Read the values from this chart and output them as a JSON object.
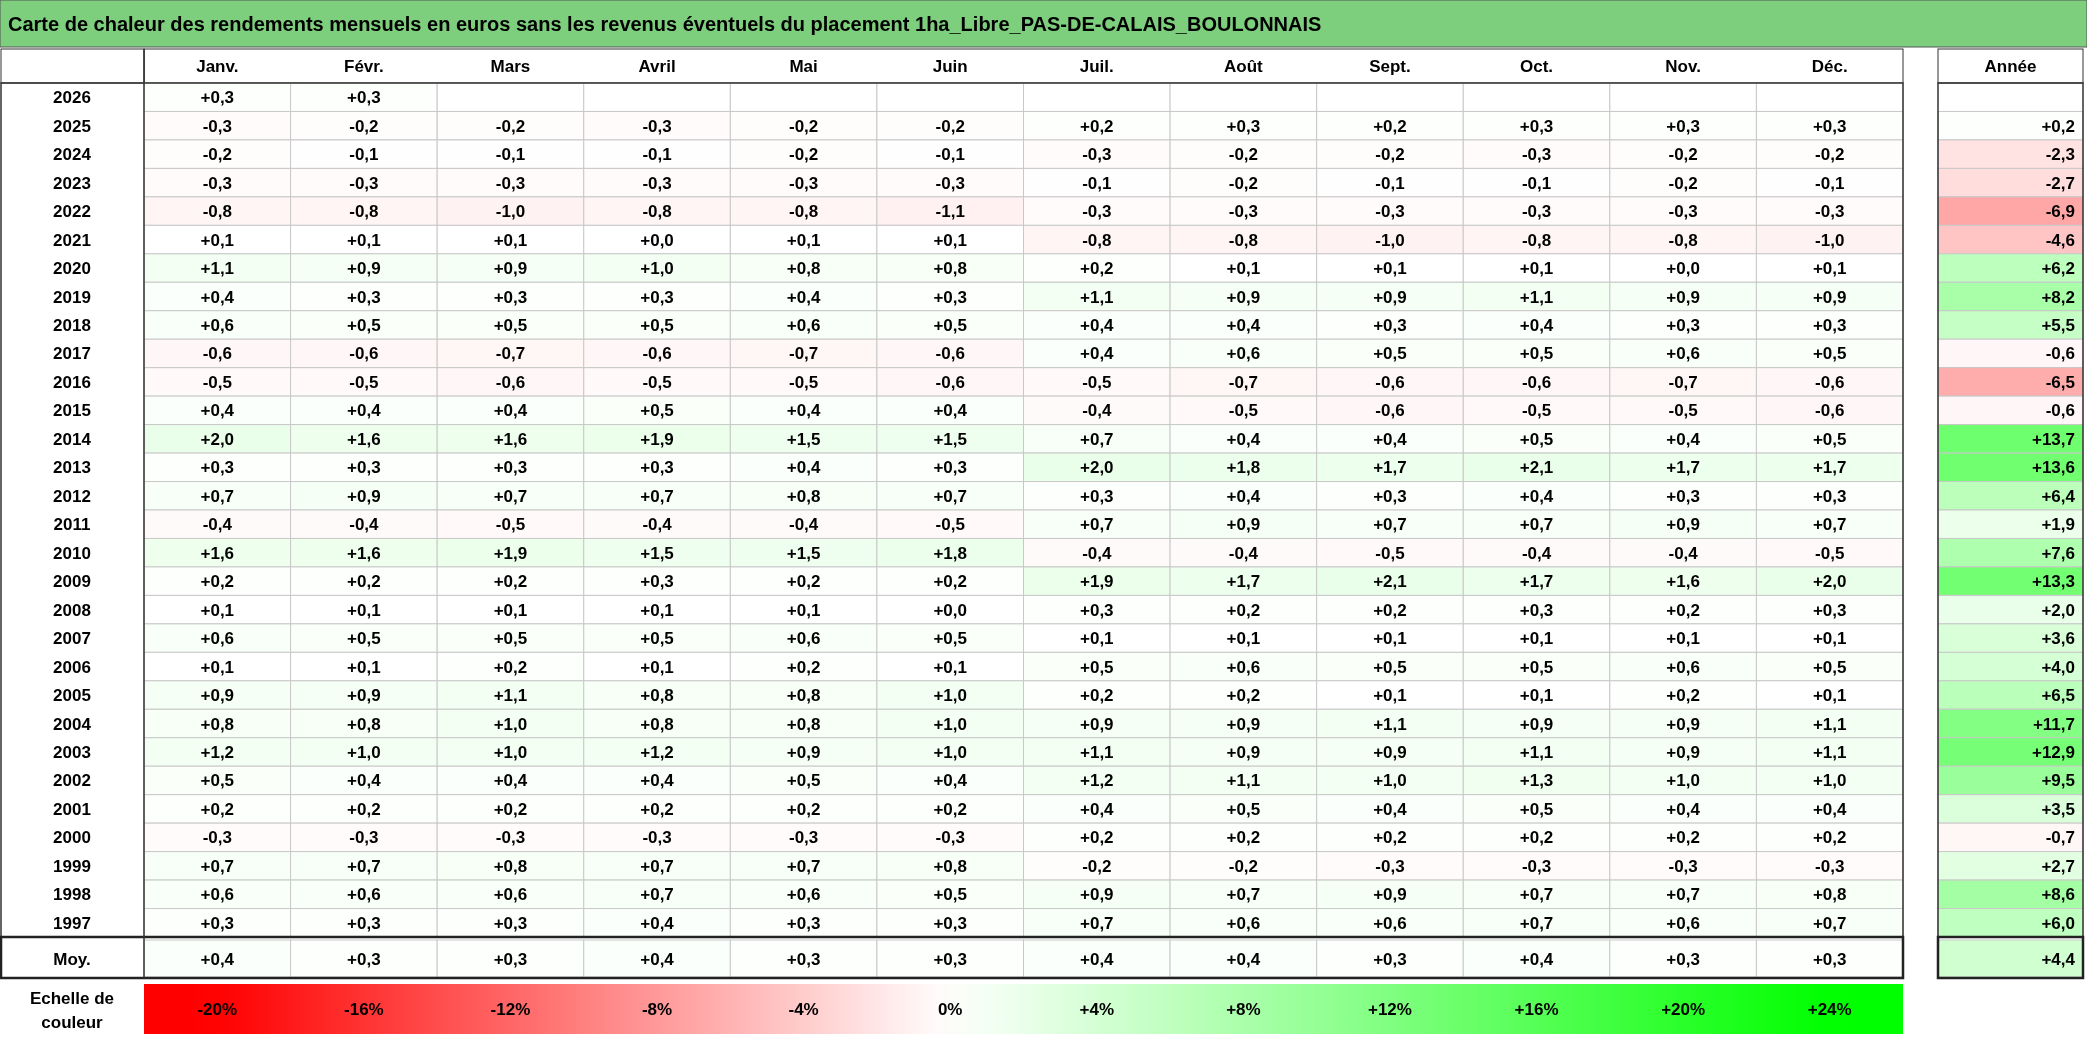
{
  "chart_data": {
    "type": "heatmap",
    "title": "Carte de chaleur des rendements mensuels en euros sans les revenus éventuels du placement 1ha_Libre_PAS-DE-CALAIS_BOULONNAIS",
    "clabel": "Echelle de couleur",
    "categories": [
      "Janv.",
      "Févr.",
      "Mars",
      "Avril",
      "Mai",
      "Juin",
      "Juil.",
      "Août",
      "Sept.",
      "Oct.",
      "Nov.",
      "Déc.",
      "Année"
    ],
    "y_categories": [
      "2026",
      "2025",
      "2024",
      "2023",
      "2022",
      "2021",
      "2020",
      "2019",
      "2018",
      "2017",
      "2016",
      "2015",
      "2014",
      "2013",
      "2012",
      "2011",
      "2010",
      "2009",
      "2008",
      "2007",
      "2006",
      "2005",
      "2004",
      "2003",
      "2002",
      "2001",
      "2000",
      "1999",
      "1998",
      "1997",
      "Moy."
    ],
    "cells": [
      [
        0.3,
        0.3,
        null,
        null,
        null,
        null,
        null,
        null,
        null,
        null,
        null,
        null,
        null
      ],
      [
        -0.3,
        -0.2,
        -0.2,
        -0.3,
        -0.2,
        -0.2,
        0.2,
        0.3,
        0.2,
        0.3,
        0.3,
        0.3,
        0.2
      ],
      [
        -0.2,
        -0.1,
        -0.1,
        -0.1,
        -0.2,
        -0.1,
        -0.3,
        -0.2,
        -0.2,
        -0.3,
        -0.2,
        -0.2,
        -2.3
      ],
      [
        -0.3,
        -0.3,
        -0.3,
        -0.3,
        -0.3,
        -0.3,
        -0.1,
        -0.2,
        -0.1,
        -0.1,
        -0.2,
        -0.1,
        -2.7
      ],
      [
        -0.8,
        -0.8,
        -1.0,
        -0.8,
        -0.8,
        -1.1,
        -0.3,
        -0.3,
        -0.3,
        -0.3,
        -0.3,
        -0.3,
        -6.9
      ],
      [
        0.1,
        0.1,
        0.1,
        0.0,
        0.1,
        0.1,
        -0.8,
        -0.8,
        -1.0,
        -0.8,
        -0.8,
        -1.0,
        -4.6
      ],
      [
        1.1,
        0.9,
        0.9,
        1.0,
        0.8,
        0.8,
        0.2,
        0.1,
        0.1,
        0.1,
        0.0,
        0.1,
        6.2
      ],
      [
        0.4,
        0.3,
        0.3,
        0.3,
        0.4,
        0.3,
        1.1,
        0.9,
        0.9,
        1.1,
        0.9,
        0.9,
        8.2
      ],
      [
        0.6,
        0.5,
        0.5,
        0.5,
        0.6,
        0.5,
        0.4,
        0.4,
        0.3,
        0.4,
        0.3,
        0.3,
        5.5
      ],
      [
        -0.6,
        -0.6,
        -0.7,
        -0.6,
        -0.7,
        -0.6,
        0.4,
        0.6,
        0.5,
        0.5,
        0.6,
        0.5,
        -0.6
      ],
      [
        -0.5,
        -0.5,
        -0.6,
        -0.5,
        -0.5,
        -0.6,
        -0.5,
        -0.7,
        -0.6,
        -0.6,
        -0.7,
        -0.6,
        -6.5
      ],
      [
        0.4,
        0.4,
        0.4,
        0.5,
        0.4,
        0.4,
        -0.4,
        -0.5,
        -0.6,
        -0.5,
        -0.5,
        -0.6,
        -0.6
      ],
      [
        2.0,
        1.6,
        1.6,
        1.9,
        1.5,
        1.5,
        0.7,
        0.4,
        0.4,
        0.5,
        0.4,
        0.5,
        13.7
      ],
      [
        0.3,
        0.3,
        0.3,
        0.3,
        0.4,
        0.3,
        2.0,
        1.8,
        1.7,
        2.1,
        1.7,
        1.7,
        13.6
      ],
      [
        0.7,
        0.9,
        0.7,
        0.7,
        0.8,
        0.7,
        0.3,
        0.4,
        0.3,
        0.4,
        0.3,
        0.3,
        6.4
      ],
      [
        -0.4,
        -0.4,
        -0.5,
        -0.4,
        -0.4,
        -0.5,
        0.7,
        0.9,
        0.7,
        0.7,
        0.9,
        0.7,
        1.9
      ],
      [
        1.6,
        1.6,
        1.9,
        1.5,
        1.5,
        1.8,
        -0.4,
        -0.4,
        -0.5,
        -0.4,
        -0.4,
        -0.5,
        7.6
      ],
      [
        0.2,
        0.2,
        0.2,
        0.3,
        0.2,
        0.2,
        1.9,
        1.7,
        2.1,
        1.7,
        1.6,
        2.0,
        13.3
      ],
      [
        0.1,
        0.1,
        0.1,
        0.1,
        0.1,
        0.0,
        0.3,
        0.2,
        0.2,
        0.3,
        0.2,
        0.3,
        2.0
      ],
      [
        0.6,
        0.5,
        0.5,
        0.5,
        0.6,
        0.5,
        0.1,
        0.1,
        0.1,
        0.1,
        0.1,
        0.1,
        3.6
      ],
      [
        0.1,
        0.1,
        0.2,
        0.1,
        0.2,
        0.1,
        0.5,
        0.6,
        0.5,
        0.5,
        0.6,
        0.5,
        4.0
      ],
      [
        0.9,
        0.9,
        1.1,
        0.8,
        0.8,
        1.0,
        0.2,
        0.2,
        0.1,
        0.1,
        0.2,
        0.1,
        6.5
      ],
      [
        0.8,
        0.8,
        1.0,
        0.8,
        0.8,
        1.0,
        0.9,
        0.9,
        1.1,
        0.9,
        0.9,
        1.1,
        11.7
      ],
      [
        1.2,
        1.0,
        1.0,
        1.2,
        0.9,
        1.0,
        1.1,
        0.9,
        0.9,
        1.1,
        0.9,
        1.1,
        12.9
      ],
      [
        0.5,
        0.4,
        0.4,
        0.4,
        0.5,
        0.4,
        1.2,
        1.1,
        1.0,
        1.3,
        1.0,
        1.0,
        9.5
      ],
      [
        0.2,
        0.2,
        0.2,
        0.2,
        0.2,
        0.2,
        0.4,
        0.5,
        0.4,
        0.5,
        0.4,
        0.4,
        3.5
      ],
      [
        -0.3,
        -0.3,
        -0.3,
        -0.3,
        -0.3,
        -0.3,
        0.2,
        0.2,
        0.2,
        0.2,
        0.2,
        0.2,
        -0.7
      ],
      [
        0.7,
        0.7,
        0.8,
        0.7,
        0.7,
        0.8,
        -0.2,
        -0.2,
        -0.3,
        -0.3,
        -0.3,
        -0.3,
        2.7
      ],
      [
        0.6,
        0.6,
        0.6,
        0.7,
        0.6,
        0.5,
        0.9,
        0.7,
        0.9,
        0.7,
        0.7,
        0.8,
        8.6
      ],
      [
        0.3,
        0.3,
        0.3,
        0.4,
        0.3,
        0.3,
        0.7,
        0.6,
        0.6,
        0.7,
        0.6,
        0.7,
        6.0
      ],
      [
        0.4,
        0.3,
        0.3,
        0.4,
        0.3,
        0.3,
        0.4,
        0.4,
        0.3,
        0.4,
        0.3,
        0.3,
        4.4
      ]
    ],
    "cell_labels": [
      [
        "+0,3",
        "+0,3",
        null,
        null,
        null,
        null,
        null,
        null,
        null,
        null,
        null,
        null,
        null
      ],
      [
        "-0,3",
        "-0,2",
        "-0,2",
        "-0,3",
        "-0,2",
        "-0,2",
        "+0,2",
        "+0,3",
        "+0,2",
        "+0,3",
        "+0,3",
        "+0,3",
        "+0,2"
      ],
      [
        "-0,2",
        "-0,1",
        "-0,1",
        "-0,1",
        "-0,2",
        "-0,1",
        "-0,3",
        "-0,2",
        "-0,2",
        "-0,3",
        "-0,2",
        "-0,2",
        "-2,3"
      ],
      [
        "-0,3",
        "-0,3",
        "-0,3",
        "-0,3",
        "-0,3",
        "-0,3",
        "-0,1",
        "-0,2",
        "-0,1",
        "-0,1",
        "-0,2",
        "-0,1",
        "-2,7"
      ],
      [
        "-0,8",
        "-0,8",
        "-1,0",
        "-0,8",
        "-0,8",
        "-1,1",
        "-0,3",
        "-0,3",
        "-0,3",
        "-0,3",
        "-0,3",
        "-0,3",
        "-6,9"
      ],
      [
        "+0,1",
        "+0,1",
        "+0,1",
        "+0,0",
        "+0,1",
        "+0,1",
        "-0,8",
        "-0,8",
        "-1,0",
        "-0,8",
        "-0,8",
        "-1,0",
        "-4,6"
      ],
      [
        "+1,1",
        "+0,9",
        "+0,9",
        "+1,0",
        "+0,8",
        "+0,8",
        "+0,2",
        "+0,1",
        "+0,1",
        "+0,1",
        "+0,0",
        "+0,1",
        "+6,2"
      ],
      [
        "+0,4",
        "+0,3",
        "+0,3",
        "+0,3",
        "+0,4",
        "+0,3",
        "+1,1",
        "+0,9",
        "+0,9",
        "+1,1",
        "+0,9",
        "+0,9",
        "+8,2"
      ],
      [
        "+0,6",
        "+0,5",
        "+0,5",
        "+0,5",
        "+0,6",
        "+0,5",
        "+0,4",
        "+0,4",
        "+0,3",
        "+0,4",
        "+0,3",
        "+0,3",
        "+5,5"
      ],
      [
        "-0,6",
        "-0,6",
        "-0,7",
        "-0,6",
        "-0,7",
        "-0,6",
        "+0,4",
        "+0,6",
        "+0,5",
        "+0,5",
        "+0,6",
        "+0,5",
        "-0,6"
      ],
      [
        "-0,5",
        "-0,5",
        "-0,6",
        "-0,5",
        "-0,5",
        "-0,6",
        "-0,5",
        "-0,7",
        "-0,6",
        "-0,6",
        "-0,7",
        "-0,6",
        "-6,5"
      ],
      [
        "+0,4",
        "+0,4",
        "+0,4",
        "+0,5",
        "+0,4",
        "+0,4",
        "-0,4",
        "-0,5",
        "-0,6",
        "-0,5",
        "-0,5",
        "-0,6",
        "-0,6"
      ],
      [
        "+2,0",
        "+1,6",
        "+1,6",
        "+1,9",
        "+1,5",
        "+1,5",
        "+0,7",
        "+0,4",
        "+0,4",
        "+0,5",
        "+0,4",
        "+0,5",
        "+13,7"
      ],
      [
        "+0,3",
        "+0,3",
        "+0,3",
        "+0,3",
        "+0,4",
        "+0,3",
        "+2,0",
        "+1,8",
        "+1,7",
        "+2,1",
        "+1,7",
        "+1,7",
        "+13,6"
      ],
      [
        "+0,7",
        "+0,9",
        "+0,7",
        "+0,7",
        "+0,8",
        "+0,7",
        "+0,3",
        "+0,4",
        "+0,3",
        "+0,4",
        "+0,3",
        "+0,3",
        "+6,4"
      ],
      [
        "-0,4",
        "-0,4",
        "-0,5",
        "-0,4",
        "-0,4",
        "-0,5",
        "+0,7",
        "+0,9",
        "+0,7",
        "+0,7",
        "+0,9",
        "+0,7",
        "+1,9"
      ],
      [
        "+1,6",
        "+1,6",
        "+1,9",
        "+1,5",
        "+1,5",
        "+1,8",
        "-0,4",
        "-0,4",
        "-0,5",
        "-0,4",
        "-0,4",
        "-0,5",
        "+7,6"
      ],
      [
        "+0,2",
        "+0,2",
        "+0,2",
        "+0,3",
        "+0,2",
        "+0,2",
        "+1,9",
        "+1,7",
        "+2,1",
        "+1,7",
        "+1,6",
        "+2,0",
        "+13,3"
      ],
      [
        "+0,1",
        "+0,1",
        "+0,1",
        "+0,1",
        "+0,1",
        "+0,0",
        "+0,3",
        "+0,2",
        "+0,2",
        "+0,3",
        "+0,2",
        "+0,3",
        "+2,0"
      ],
      [
        "+0,6",
        "+0,5",
        "+0,5",
        "+0,5",
        "+0,6",
        "+0,5",
        "+0,1",
        "+0,1",
        "+0,1",
        "+0,1",
        "+0,1",
        "+0,1",
        "+3,6"
      ],
      [
        "+0,1",
        "+0,1",
        "+0,2",
        "+0,1",
        "+0,2",
        "+0,1",
        "+0,5",
        "+0,6",
        "+0,5",
        "+0,5",
        "+0,6",
        "+0,5",
        "+4,0"
      ],
      [
        "+0,9",
        "+0,9",
        "+1,1",
        "+0,8",
        "+0,8",
        "+1,0",
        "+0,2",
        "+0,2",
        "+0,1",
        "+0,1",
        "+0,2",
        "+0,1",
        "+6,5"
      ],
      [
        "+0,8",
        "+0,8",
        "+1,0",
        "+0,8",
        "+0,8",
        "+1,0",
        "+0,9",
        "+0,9",
        "+1,1",
        "+0,9",
        "+0,9",
        "+1,1",
        "+11,7"
      ],
      [
        "+1,2",
        "+1,0",
        "+1,0",
        "+1,2",
        "+0,9",
        "+1,0",
        "+1,1",
        "+0,9",
        "+0,9",
        "+1,1",
        "+0,9",
        "+1,1",
        "+12,9"
      ],
      [
        "+0,5",
        "+0,4",
        "+0,4",
        "+0,4",
        "+0,5",
        "+0,4",
        "+1,2",
        "+1,1",
        "+1,0",
        "+1,3",
        "+1,0",
        "+1,0",
        "+9,5"
      ],
      [
        "+0,2",
        "+0,2",
        "+0,2",
        "+0,2",
        "+0,2",
        "+0,2",
        "+0,4",
        "+0,5",
        "+0,4",
        "+0,5",
        "+0,4",
        "+0,4",
        "+3,5"
      ],
      [
        "-0,3",
        "-0,3",
        "-0,3",
        "-0,3",
        "-0,3",
        "-0,3",
        "+0,2",
        "+0,2",
        "+0,2",
        "+0,2",
        "+0,2",
        "+0,2",
        "-0,7"
      ],
      [
        "+0,7",
        "+0,7",
        "+0,8",
        "+0,7",
        "+0,7",
        "+0,8",
        "-0,2",
        "-0,2",
        "-0,3",
        "-0,3",
        "-0,3",
        "-0,3",
        "+2,7"
      ],
      [
        "+0,6",
        "+0,6",
        "+0,6",
        "+0,7",
        "+0,6",
        "+0,5",
        "+0,9",
        "+0,7",
        "+0,9",
        "+0,7",
        "+0,7",
        "+0,8",
        "+8,6"
      ],
      [
        "+0,3",
        "+0,3",
        "+0,3",
        "+0,4",
        "+0,3",
        "+0,3",
        "+0,7",
        "+0,6",
        "+0,6",
        "+0,7",
        "+0,6",
        "+0,7",
        "+6,0"
      ],
      [
        "+0,4",
        "+0,3",
        "+0,3",
        "+0,4",
        "+0,3",
        "+0,3",
        "+0,4",
        "+0,4",
        "+0,3",
        "+0,4",
        "+0,3",
        "+0,3",
        "+4,4"
      ]
    ],
    "clim": [
      -20,
      24
    ],
    "cticks": [
      {
        "value": -20,
        "label": "-20%"
      },
      {
        "value": -16,
        "label": "-16%"
      },
      {
        "value": -12,
        "label": "-12%"
      },
      {
        "value": -8,
        "label": "-8%"
      },
      {
        "value": -4,
        "label": "-4%"
      },
      {
        "value": 0,
        "label": "0%"
      },
      {
        "value": 4,
        "label": "+4%"
      },
      {
        "value": 8,
        "label": "+8%"
      },
      {
        "value": 12,
        "label": "+12%"
      },
      {
        "value": 16,
        "label": "+16%"
      },
      {
        "value": 20,
        "label": "+20%"
      },
      {
        "value": 24,
        "label": "+24%"
      }
    ]
  }
}
